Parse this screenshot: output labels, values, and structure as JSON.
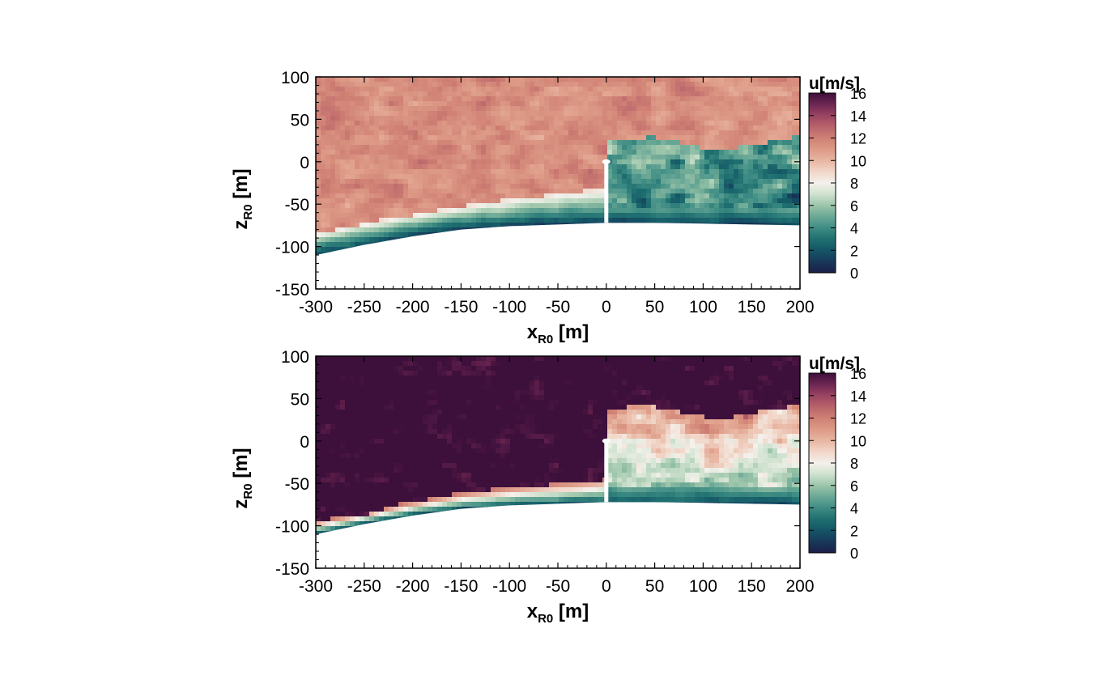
{
  "chart_data": [
    {
      "type": "heatmap",
      "panel": "top",
      "xlabel": "x",
      "xlabel_sub": "R0",
      "xlabel_unit": "[m]",
      "ylabel": "z",
      "ylabel_sub": "R0",
      "ylabel_unit": "[m]",
      "xlim": [
        -300,
        200
      ],
      "ylim": [
        -150,
        100
      ],
      "x_ticks": [
        -300,
        -250,
        -200,
        -150,
        -100,
        -50,
        0,
        50,
        100,
        150,
        200
      ],
      "y_ticks": [
        100,
        50,
        0,
        -50,
        -100,
        -150
      ],
      "colorbar": {
        "title": "u[m/s]",
        "min": 0,
        "max": 16,
        "ticks": [
          16,
          14,
          12,
          10,
          8,
          6,
          4,
          2,
          0
        ]
      },
      "terrain_surface": {
        "x": [
          -300,
          -250,
          -200,
          -150,
          -100,
          -50,
          0,
          50,
          100,
          150,
          200
        ],
        "z": [
          -110,
          -98,
          -88,
          -80,
          -76,
          -74,
          -72,
          -72,
          -73,
          -74,
          -75
        ]
      },
      "turbine": {
        "x": 0,
        "hub_z": 0,
        "base_z": -72
      },
      "field": {
        "upper_free_stream_u": 11.5,
        "shear_layer_top_z": {
          "x": [
            -300,
            -250,
            -200,
            -150,
            -100,
            -50,
            0
          ],
          "z": [
            -85,
            -73,
            -63,
            -53,
            -45,
            -38,
            -32
          ]
        },
        "wake_region": {
          "x": [
            0,
            200
          ],
          "z_top": 22,
          "u": 5
        },
        "near_ground_u": 1.5
      }
    },
    {
      "type": "heatmap",
      "panel": "bottom",
      "xlabel": "x",
      "xlabel_sub": "R0",
      "xlabel_unit": "[m]",
      "ylabel": "z",
      "ylabel_sub": "R0",
      "ylabel_unit": "[m]",
      "xlim": [
        -300,
        200
      ],
      "ylim": [
        -150,
        100
      ],
      "x_ticks": [
        -300,
        -250,
        -200,
        -150,
        -100,
        -50,
        0,
        50,
        100,
        150,
        200
      ],
      "y_ticks": [
        100,
        50,
        0,
        -50,
        -100,
        -150
      ],
      "colorbar": {
        "title": "u[m/s]",
        "min": 0,
        "max": 16,
        "ticks": [
          16,
          14,
          12,
          10,
          8,
          6,
          4,
          2,
          0
        ]
      },
      "terrain_surface": {
        "x": [
          -300,
          -250,
          -200,
          -150,
          -100,
          -50,
          0,
          50,
          100,
          150,
          200
        ],
        "z": [
          -110,
          -98,
          -88,
          -80,
          -76,
          -74,
          -72,
          -72,
          -73,
          -74,
          -75
        ]
      },
      "turbine": {
        "x": 0,
        "hub_z": 0,
        "base_z": -72
      },
      "field": {
        "upper_free_stream_u": 16.5,
        "shear_layer_top_z": {
          "x": [
            -300,
            -250,
            -200,
            -150,
            -100,
            -50,
            0
          ],
          "z": [
            -95,
            -85,
            -72,
            -62,
            -55,
            -50,
            -45
          ]
        },
        "wake_region": {
          "x": [
            0,
            200
          ],
          "z_top": 35,
          "u": 11
        },
        "near_ground_u": 2
      }
    }
  ]
}
